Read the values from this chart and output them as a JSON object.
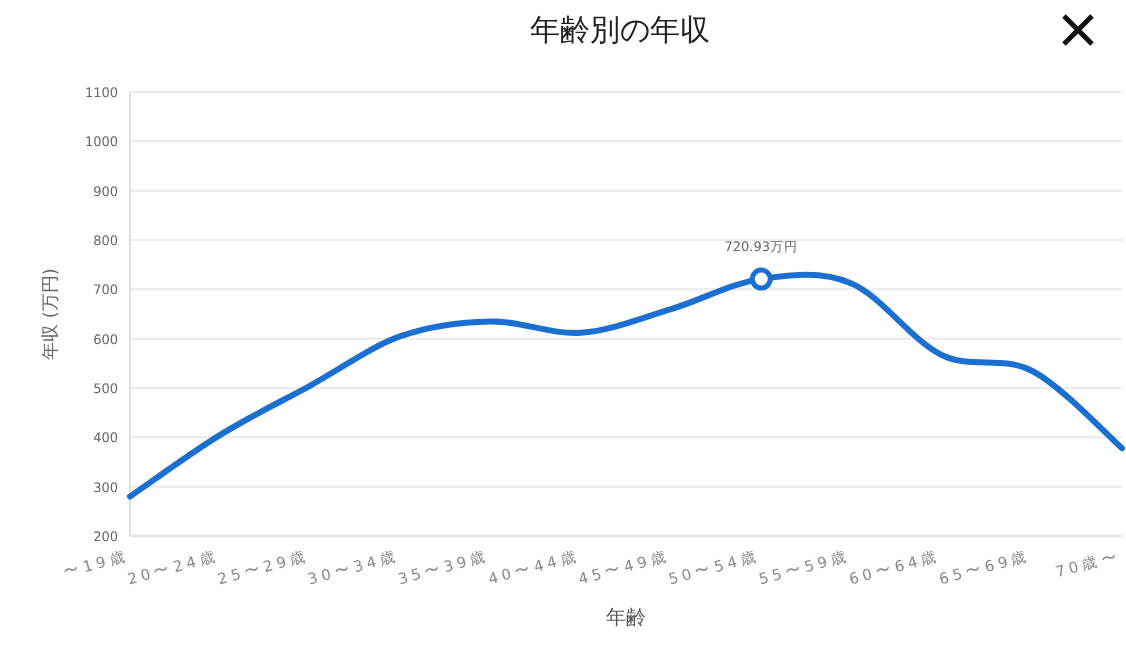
{
  "chart_data": {
    "type": "line",
    "title": "年齢別の年収",
    "xlabel": "年齢",
    "ylabel": "年収 (万円)",
    "categories": [
      "〜19歳",
      "20〜24歳",
      "25〜29歳",
      "30〜34歳",
      "35〜39歳",
      "40〜44歳",
      "45〜49歳",
      "50〜54歳",
      "55〜59歳",
      "60〜64歳",
      "65〜69歳",
      "70歳〜"
    ],
    "series": [
      {
        "color": "#1a6fd0",
        "values": [
          280,
          405,
          505,
          605,
          635,
          612,
          660,
          720.93,
          712,
          567,
          535,
          378
        ]
      }
    ],
    "annotations": [
      {
        "text": "720.93万円",
        "x": "50〜54歳",
        "y": 720.93
      }
    ],
    "ylim": [
      200,
      1100
    ],
    "yticks": [
      200,
      300,
      400,
      500,
      600,
      700,
      800,
      900,
      1000,
      1100
    ],
    "grid": "y",
    "marker": "none",
    "line_style": "solid"
  }
}
